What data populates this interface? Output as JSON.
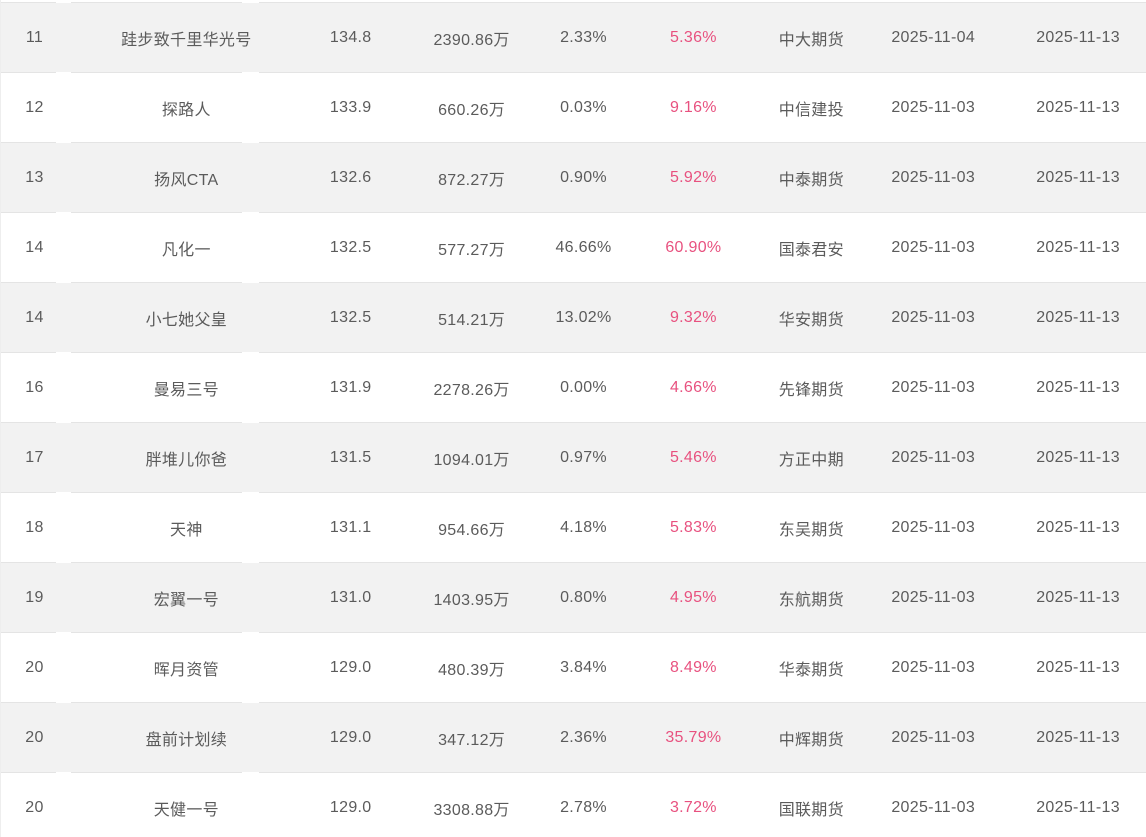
{
  "table": {
    "accent_pink": "#e8517f",
    "row_alt_gray": "#f2f2f2",
    "divider_color": "#e4e4e4",
    "rows": [
      {
        "rank": "11",
        "name": "跬步致千里华光号",
        "value": "134.8",
        "amount": "2390.86万",
        "pct_a": "2.33%",
        "pct_b": "5.36%",
        "company": "中大期货",
        "date_from": "2025-11-04",
        "date_to": "2025-11-13"
      },
      {
        "rank": "12",
        "name": "探路人",
        "value": "133.9",
        "amount": "660.26万",
        "pct_a": "0.03%",
        "pct_b": "9.16%",
        "company": "中信建投",
        "date_from": "2025-11-03",
        "date_to": "2025-11-13"
      },
      {
        "rank": "13",
        "name": "扬风CTA",
        "value": "132.6",
        "amount": "872.27万",
        "pct_a": "0.90%",
        "pct_b": "5.92%",
        "company": "中泰期货",
        "date_from": "2025-11-03",
        "date_to": "2025-11-13"
      },
      {
        "rank": "14",
        "name": "凡化一",
        "value": "132.5",
        "amount": "577.27万",
        "pct_a": "46.66%",
        "pct_b": "60.90%",
        "company": "国泰君安",
        "date_from": "2025-11-03",
        "date_to": "2025-11-13"
      },
      {
        "rank": "14",
        "name": "小七她父皇",
        "value": "132.5",
        "amount": "514.21万",
        "pct_a": "13.02%",
        "pct_b": "9.32%",
        "company": "华安期货",
        "date_from": "2025-11-03",
        "date_to": "2025-11-13"
      },
      {
        "rank": "16",
        "name": "曼易三号",
        "value": "131.9",
        "amount": "2278.26万",
        "pct_a": "0.00%",
        "pct_b": "4.66%",
        "company": "先锋期货",
        "date_from": "2025-11-03",
        "date_to": "2025-11-13"
      },
      {
        "rank": "17",
        "name": "胖堆儿你爸",
        "value": "131.5",
        "amount": "1094.01万",
        "pct_a": "0.97%",
        "pct_b": "5.46%",
        "company": "方正中期",
        "date_from": "2025-11-03",
        "date_to": "2025-11-13"
      },
      {
        "rank": "18",
        "name": "天神",
        "value": "131.1",
        "amount": "954.66万",
        "pct_a": "4.18%",
        "pct_b": "5.83%",
        "company": "东吴期货",
        "date_from": "2025-11-03",
        "date_to": "2025-11-13"
      },
      {
        "rank": "19",
        "name": "宏翼一号",
        "value": "131.0",
        "amount": "1403.95万",
        "pct_a": "0.80%",
        "pct_b": "4.95%",
        "company": "东航期货",
        "date_from": "2025-11-03",
        "date_to": "2025-11-13"
      },
      {
        "rank": "20",
        "name": "晖月资管",
        "value": "129.0",
        "amount": "480.39万",
        "pct_a": "3.84%",
        "pct_b": "8.49%",
        "company": "华泰期货",
        "date_from": "2025-11-03",
        "date_to": "2025-11-13"
      },
      {
        "rank": "20",
        "name": "盘前计划续",
        "value": "129.0",
        "amount": "347.12万",
        "pct_a": "2.36%",
        "pct_b": "35.79%",
        "company": "中辉期货",
        "date_from": "2025-11-03",
        "date_to": "2025-11-13"
      },
      {
        "rank": "20",
        "name": "天健一号",
        "value": "129.0",
        "amount": "3308.88万",
        "pct_a": "2.78%",
        "pct_b": "3.72%",
        "company": "国联期货",
        "date_from": "2025-11-03",
        "date_to": "2025-11-13"
      }
    ]
  }
}
